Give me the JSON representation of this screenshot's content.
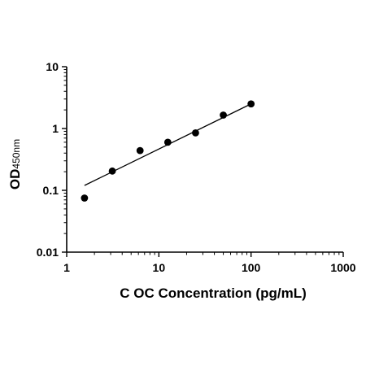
{
  "chart_data": {
    "type": "scatter",
    "xlabel": "C OC Concentration (pg/mL)",
    "ylabel": "OD",
    "ylabel_subscript": "450nm",
    "x_scale": "log",
    "y_scale": "log",
    "xlim": [
      1,
      1000
    ],
    "ylim": [
      0.01,
      10
    ],
    "x_ticks": [
      1,
      10,
      100,
      1000
    ],
    "x_tick_labels": [
      "1",
      "10",
      "100",
      "1000"
    ],
    "y_ticks": [
      0.01,
      0.1,
      1,
      10
    ],
    "y_tick_labels": [
      "0.01",
      "0.1",
      "1",
      "10"
    ],
    "grid": false,
    "series": [
      {
        "x": [
          1.56,
          3.125,
          6.25,
          12.5,
          25,
          50,
          100
        ],
        "y": [
          0.075,
          0.205,
          0.44,
          0.6,
          0.85,
          1.65,
          2.5
        ],
        "color": "#000000",
        "marker": "circle"
      }
    ],
    "fit_line": {
      "x": [
        1.56,
        100
      ],
      "y": [
        0.12,
        2.5
      ]
    }
  }
}
